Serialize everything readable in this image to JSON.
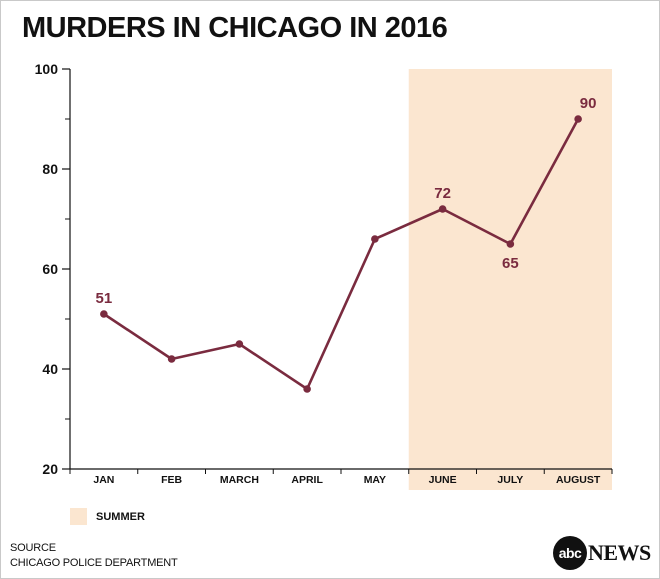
{
  "title": "MURDERS IN CHICAGO IN 2016",
  "colors": {
    "line": "#7a2b3f",
    "summer_band": "#fbe6d0",
    "text": "#111111"
  },
  "legend": {
    "label": "SUMMER",
    "color": "#fbe6d0"
  },
  "source": {
    "line1": "SOURCE",
    "line2": "CHICAGO POLICE DEPARTMENT"
  },
  "logo": {
    "circle_text": "abc",
    "word": "NEWS"
  },
  "chart_data": {
    "type": "line",
    "title": "MURDERS IN CHICAGO IN 2016",
    "xlabel": "",
    "ylabel": "",
    "categories": [
      "JAN",
      "FEB",
      "MARCH",
      "APRIL",
      "MAY",
      "JUNE",
      "JULY",
      "AUGUST"
    ],
    "series": [
      {
        "values": [
          51,
          42,
          45,
          36,
          66,
          72,
          65,
          90
        ]
      }
    ],
    "data_labels": [
      {
        "category": "JAN",
        "text": "51"
      },
      {
        "category": "JUNE",
        "text": "72"
      },
      {
        "category": "JULY",
        "text": "65"
      },
      {
        "category": "AUGUST",
        "text": "90"
      }
    ],
    "ylim": [
      20,
      100
    ],
    "yticks": [
      20,
      40,
      60,
      80,
      100
    ],
    "minor_yticks": [
      30,
      50,
      70,
      90
    ],
    "highlight_band": {
      "from": "JUNE",
      "to": "AUGUST",
      "label": "SUMMER"
    },
    "grid": false,
    "legend_position": "bottom-left"
  }
}
